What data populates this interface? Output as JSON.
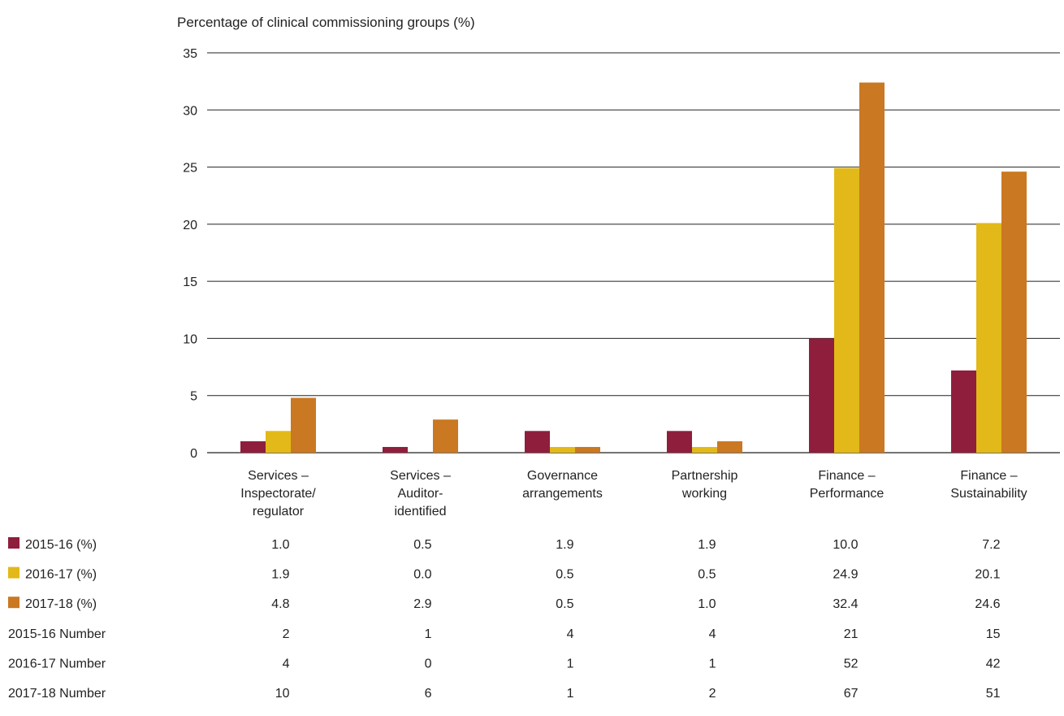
{
  "chart_data": {
    "type": "bar",
    "ylabel": "Percentage of clinical commissioning groups (%)",
    "ylim": [
      0,
      35
    ],
    "yticks": [
      0,
      5,
      10,
      15,
      20,
      25,
      30,
      35
    ],
    "grid": true,
    "categories": [
      "Services – Inspectorate/ regulator",
      "Services – Auditor- identified",
      "Governance arrangements",
      "Partnership working",
      "Finance – Performance",
      "Finance – Sustainability"
    ],
    "category_lines": [
      [
        "Services –",
        "Inspectorate/",
        "regulator"
      ],
      [
        "Services –",
        "Auditor-",
        "identified"
      ],
      [
        "Governance",
        "arrangements"
      ],
      [
        "Partnership",
        "working"
      ],
      [
        "Finance –",
        "Performance"
      ],
      [
        "Finance –",
        "Sustainability"
      ]
    ],
    "series": [
      {
        "name": "2015-16 (%)",
        "color": "#8f1e3c",
        "values": [
          1.0,
          0.5,
          1.9,
          1.9,
          10.0,
          7.2
        ]
      },
      {
        "name": "2016-17 (%)",
        "color": "#e2b918",
        "values": [
          1.9,
          0.0,
          0.5,
          0.5,
          24.9,
          20.1
        ]
      },
      {
        "name": "2017-18 (%)",
        "color": "#ca7821",
        "values": [
          4.8,
          2.9,
          0.5,
          1.0,
          32.4,
          24.6
        ]
      }
    ],
    "table": {
      "rows": [
        {
          "label": "2015-16 (%)",
          "swatch": "#8f1e3c",
          "values": [
            "1.0",
            "0.5",
            "1.9",
            "1.9",
            "10.0",
            "7.2"
          ]
        },
        {
          "label": "2016-17 (%)",
          "swatch": "#e2b918",
          "values": [
            "1.9",
            "0.0",
            "0.5",
            "0.5",
            "24.9",
            "20.1"
          ]
        },
        {
          "label": "2017-18 (%)",
          "swatch": "#ca7821",
          "values": [
            "4.8",
            "2.9",
            "0.5",
            "1.0",
            "32.4",
            "24.6"
          ]
        },
        {
          "label": "2015-16 Number",
          "swatch": null,
          "values": [
            "2",
            "1",
            "4",
            "4",
            "21",
            "15"
          ]
        },
        {
          "label": "2016-17 Number",
          "swatch": null,
          "values": [
            "4",
            "0",
            "1",
            "1",
            "52",
            "42"
          ]
        },
        {
          "label": "2017-18 Number",
          "swatch": null,
          "values": [
            "10",
            "6",
            "1",
            "2",
            "67",
            "51"
          ]
        }
      ]
    }
  }
}
